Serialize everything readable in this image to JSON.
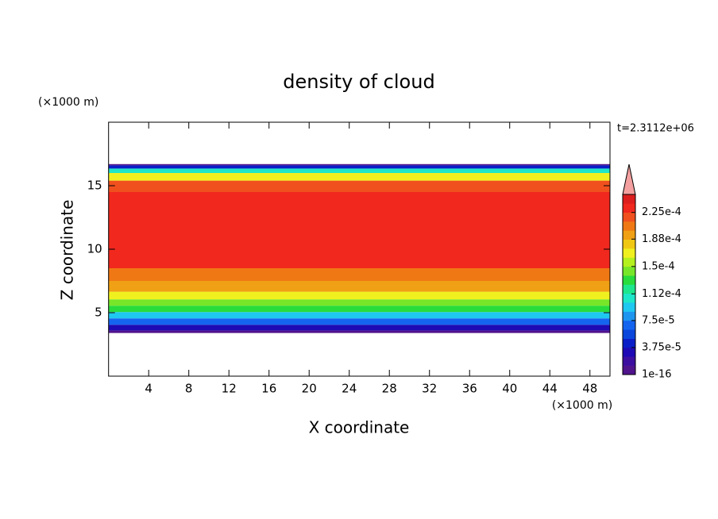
{
  "chart_data": {
    "type": "contour",
    "title": "density of cloud",
    "x_label": "X coordinate",
    "y_label": "Z coordinate",
    "x_unit": "(×1000 m)",
    "y_unit": "(×1000 m)",
    "time_label": "t=2.3112e+06",
    "xlim": [
      0,
      50
    ],
    "ylim": [
      0,
      20
    ],
    "xticks": [
      4,
      8,
      12,
      16,
      20,
      24,
      28,
      32,
      36,
      40,
      44,
      48
    ],
    "yticks": [
      5,
      10,
      15
    ],
    "profile": {
      "z": [
        3.4,
        3.8,
        4.3,
        4.8,
        5.3,
        5.8,
        6.3,
        7,
        8,
        9,
        10,
        11,
        12,
        13,
        14,
        15,
        15.8,
        16.2,
        16.5,
        16.7
      ],
      "values": [
        1e-16,
        3.75e-05,
        7.5e-05,
        0.0001,
        0.00013,
        0.00015,
        0.000175,
        0.000195,
        0.00021,
        0.00023,
        0.000235,
        0.000235,
        0.000235,
        0.000235,
        0.00023,
        0.000215,
        0.00017,
        0.00011,
        4e-05,
        1e-16
      ]
    },
    "clim": [
      1e-16,
      0.00025
    ],
    "colorbar_ticks": [
      1e-16,
      {
        "value": 3.75e-05,
        "label": "3.75e-5"
      },
      {
        "value": 7.5e-05,
        "label": "7.5e-5"
      },
      {
        "value": 0.000112,
        "label": "1.12e-4"
      },
      {
        "value": 0.00015,
        "label": "1.5e-4"
      },
      {
        "value": 0.000188,
        "label": "1.88e-4"
      },
      {
        "value": 0.000225,
        "label": "2.25e-4"
      }
    ],
    "colors": [
      "#50148c",
      "#3c0fa0",
      "#1e0ab4",
      "#0a1ec8",
      "#0a46dc",
      "#1464f0",
      "#1e96f0",
      "#1ec8f0",
      "#1ee6c8",
      "#1ee68c",
      "#28dc3c",
      "#78e628",
      "#b4f01e",
      "#f0f01e",
      "#f0c814",
      "#f0a014",
      "#f07814",
      "#f0501e",
      "#f0281e",
      "#dc1e1e"
    ],
    "extend_color": "#f4a0a0"
  }
}
